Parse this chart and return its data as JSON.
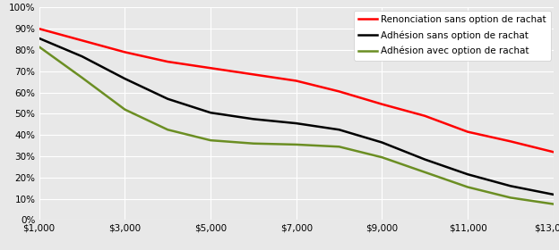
{
  "x": [
    1000,
    2000,
    3000,
    4000,
    5000,
    6000,
    7000,
    8000,
    9000,
    10000,
    11000,
    12000,
    13000
  ],
  "renonciation": [
    0.9,
    0.845,
    0.79,
    0.745,
    0.715,
    0.685,
    0.655,
    0.605,
    0.545,
    0.49,
    0.415,
    0.37,
    0.32
  ],
  "adhesion_sans": [
    0.855,
    0.77,
    0.665,
    0.57,
    0.505,
    0.475,
    0.455,
    0.425,
    0.365,
    0.285,
    0.215,
    0.16,
    0.12
  ],
  "adhesion_avec": [
    0.815,
    0.67,
    0.52,
    0.425,
    0.375,
    0.36,
    0.355,
    0.345,
    0.295,
    0.225,
    0.155,
    0.105,
    0.075
  ],
  "color_renonciation": "#FF0000",
  "color_adhesion_sans": "#000000",
  "color_adhesion_avec": "#6B8E23",
  "label_renonciation": "Renonciation sans option de rachat",
  "label_adhesion_sans": "Adhésion sans option de rachat",
  "label_adhesion_avec": "Adhésion avec option de rachat",
  "xlim": [
    1000,
    13000
  ],
  "ylim": [
    0,
    1.0
  ],
  "xticks": [
    1000,
    3000,
    5000,
    7000,
    9000,
    11000,
    13000
  ],
  "yticks": [
    0.0,
    0.1,
    0.2,
    0.3,
    0.4,
    0.5,
    0.6,
    0.7,
    0.8,
    0.9,
    1.0
  ],
  "bg_color": "#E8E8E8",
  "plot_bg_color": "#E8E8E8",
  "linewidth": 1.8,
  "grid_color": "#FFFFFF",
  "legend_fontsize": 7.5
}
